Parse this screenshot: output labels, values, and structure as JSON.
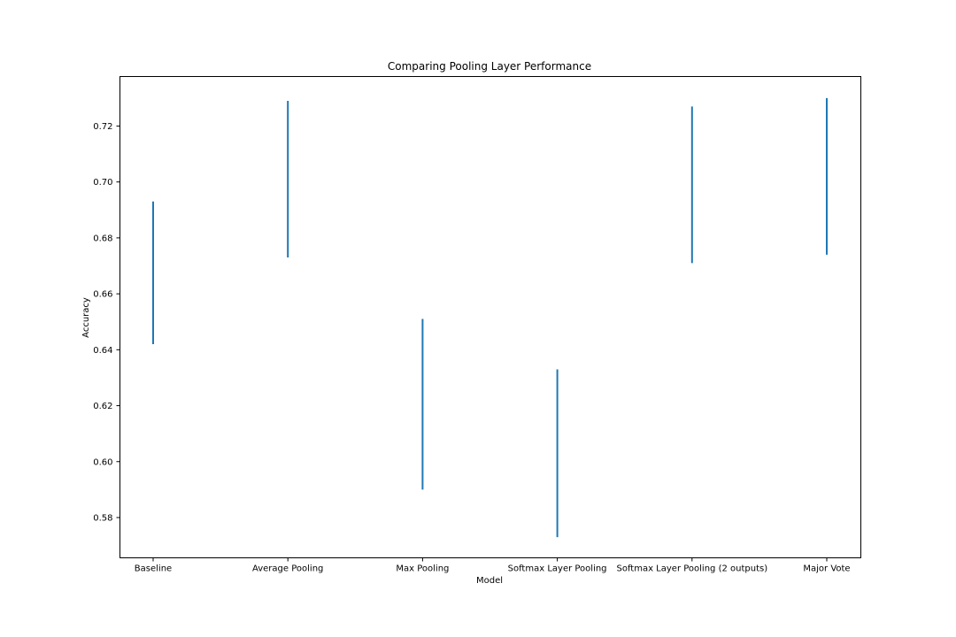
{
  "chart_data": {
    "type": "errorbar",
    "title": "Comparing Pooling Layer Performance",
    "xlabel": "Model",
    "ylabel": "Accuracy",
    "categories": [
      "Baseline",
      "Average Pooling",
      "Max Pooling",
      "Softmax Layer Pooling",
      "Softmax Layer Pooling (2 outputs)",
      "Major Vote"
    ],
    "ranges": [
      [
        0.642,
        0.693
      ],
      [
        0.673,
        0.729
      ],
      [
        0.59,
        0.651
      ],
      [
        0.573,
        0.633
      ],
      [
        0.671,
        0.727
      ],
      [
        0.674,
        0.73
      ]
    ],
    "ylim": [
      0.5656,
      0.7377
    ],
    "yticks": [
      0.58,
      0.6,
      0.62,
      0.64,
      0.66,
      0.68,
      0.7,
      0.72
    ],
    "ytick_labels": [
      "0.58",
      "0.60",
      "0.62",
      "0.64",
      "0.66",
      "0.68",
      "0.70",
      "0.72"
    ],
    "grid": false,
    "color": "#1f77b4"
  }
}
